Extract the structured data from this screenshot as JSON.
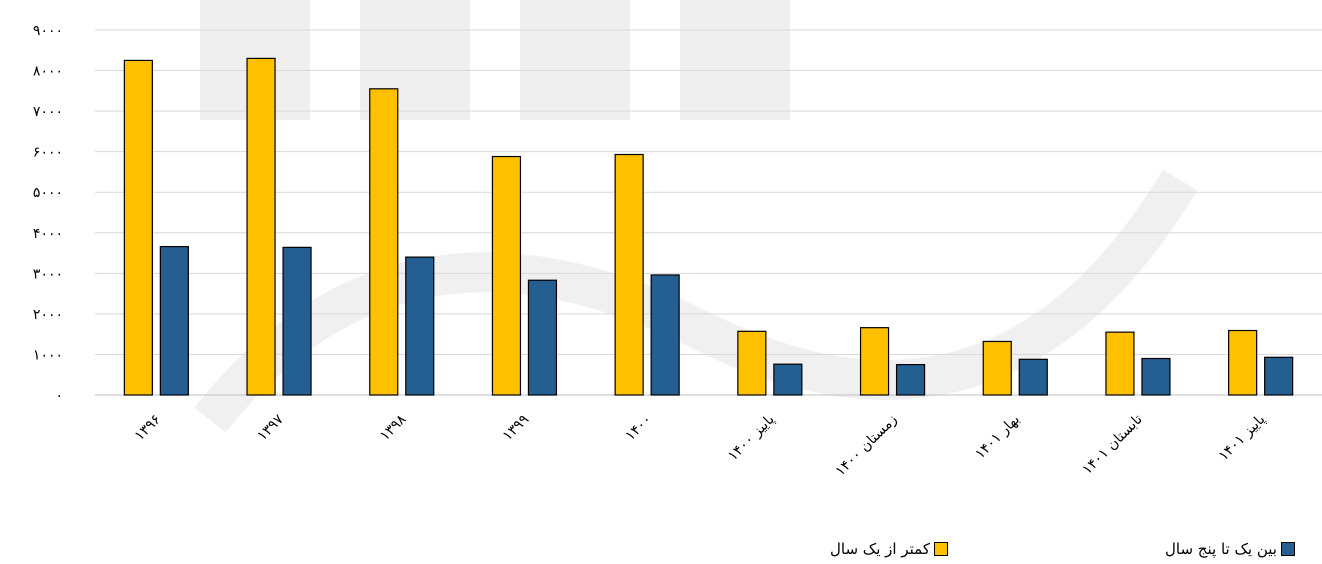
{
  "chart_data": {
    "type": "bar",
    "categories": [
      "۱۳۹۶",
      "۱۳۹۷",
      "۱۳۹۸",
      "۱۳۹۹",
      "۱۴۰۰",
      "پاییز ۱۴۰۰",
      "زمستان ۱۴۰۰",
      "بهار ۱۴۰۱",
      "تابستان ۱۴۰۱",
      "پاییز ۱۴۰۱"
    ],
    "series": [
      {
        "name": "کمتر از یک سال",
        "color": "#FFC000",
        "values": [
          8250,
          8300,
          7550,
          5880,
          5930,
          1570,
          1660,
          1320,
          1550,
          1590
        ]
      },
      {
        "name": "بین یک تا پنج سال",
        "color": "#255E91",
        "values": [
          3660,
          3640,
          3400,
          2830,
          2960,
          760,
          750,
          880,
          900,
          930
        ]
      }
    ],
    "yticks": [
      "۰",
      "۱۰۰۰",
      "۲۰۰۰",
      "۳۰۰۰",
      "۴۰۰۰",
      "۵۰۰۰",
      "۶۰۰۰",
      "۷۰۰۰",
      "۸۰۰۰",
      "۹۰۰۰"
    ],
    "ylim": [
      0,
      9000
    ],
    "grid": true,
    "legend_position": "bottom-right"
  }
}
